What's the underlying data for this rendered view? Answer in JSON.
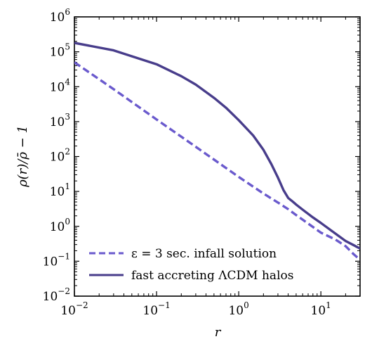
{
  "chart_data": {
    "type": "line",
    "title": "",
    "xlabel": "r",
    "ylabel": "ρ(r)/ρ̄ − 1",
    "x_scale": "log",
    "y_scale": "log",
    "xlim": [
      0.01,
      30
    ],
    "ylim": [
      0.01,
      1000000
    ],
    "x_major_ticks": [
      {
        "value": 0.01,
        "base": "10",
        "exp": "−2"
      },
      {
        "value": 0.1,
        "base": "10",
        "exp": "−1"
      },
      {
        "value": 1,
        "base": "10",
        "exp": "0"
      },
      {
        "value": 10,
        "base": "10",
        "exp": "1"
      }
    ],
    "y_major_ticks": [
      {
        "value": 0.01,
        "base": "10",
        "exp": "−2"
      },
      {
        "value": 0.1,
        "base": "10",
        "exp": "−1"
      },
      {
        "value": 1,
        "base": "10",
        "exp": "0"
      },
      {
        "value": 10,
        "base": "10",
        "exp": "1"
      },
      {
        "value": 100,
        "base": "10",
        "exp": "2"
      },
      {
        "value": 1000,
        "base": "10",
        "exp": "3"
      },
      {
        "value": 10000,
        "base": "10",
        "exp": "4"
      },
      {
        "value": 100000,
        "base": "10",
        "exp": "5"
      },
      {
        "value": 1000000,
        "base": "10",
        "exp": "6"
      }
    ],
    "grid": false,
    "legend_position": "lower-left",
    "series": [
      {
        "name": "ε = 3 sec. infall solution",
        "color": "#6a5acd",
        "style": "dashed",
        "x": [
          0.01,
          0.03,
          0.1,
          0.3,
          1,
          2,
          3,
          4,
          5,
          7,
          10,
          15,
          20,
          25,
          30
        ],
        "y": [
          50000,
          8500,
          1150,
          190,
          26,
          8.7,
          4.8,
          3.1,
          2.1,
          1.2,
          0.66,
          0.42,
          0.27,
          0.16,
          0.11
        ]
      },
      {
        "name": "fast accreting ΛCDM halos",
        "color": "#483d8b",
        "style": "solid",
        "x": [
          0.01,
          0.03,
          0.1,
          0.2,
          0.3,
          0.5,
          0.7,
          1,
          1.5,
          2,
          2.5,
          3,
          3.5,
          4,
          4.5,
          5,
          6,
          8,
          10,
          15,
          20,
          25,
          30
        ],
        "y": [
          180000,
          110000,
          44000,
          20000,
          11500,
          4800,
          2500,
          1100,
          400,
          155,
          60,
          25,
          11,
          6.5,
          5.2,
          4.2,
          3,
          1.8,
          1.25,
          0.62,
          0.38,
          0.29,
          0.23
        ]
      }
    ]
  }
}
